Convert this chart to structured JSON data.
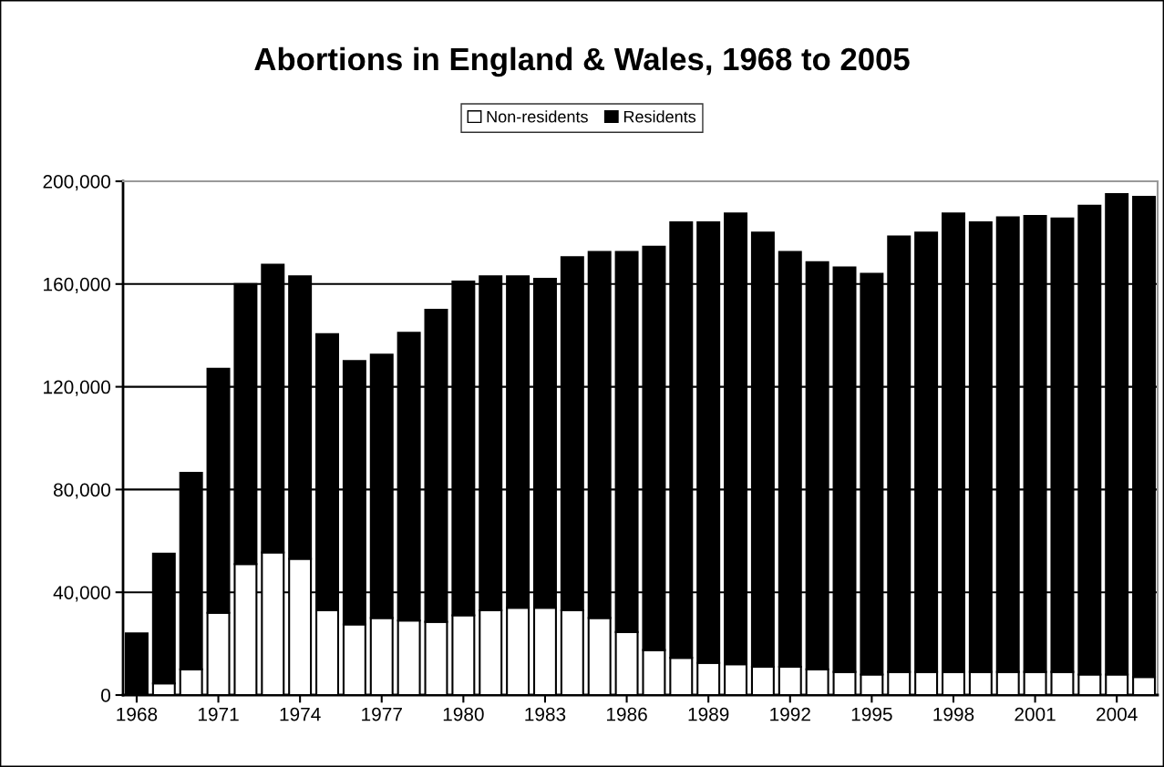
{
  "chart_data": {
    "type": "bar",
    "title": "Abortions in England & Wales, 1968 to 2005",
    "stacked": true,
    "categories": [
      "1968",
      null,
      null,
      "1971",
      null,
      null,
      "1974",
      null,
      null,
      "1977",
      null,
      null,
      "1980",
      null,
      null,
      "1983",
      null,
      null,
      "1986",
      null,
      null,
      "1989",
      null,
      null,
      "1992",
      null,
      null,
      "1995",
      null,
      null,
      "1998",
      null,
      null,
      "2001",
      null,
      null,
      "2004",
      null
    ],
    "series": [
      {
        "name": "Non-residents",
        "color": "#ffffff",
        "values": [
          0,
          4500,
          10000,
          32000,
          51000,
          55500,
          53000,
          33000,
          27500,
          30000,
          29000,
          28500,
          31000,
          33000,
          34000,
          34000,
          33000,
          30000,
          24500,
          17500,
          14500,
          12500,
          12000,
          11000,
          11000,
          10000,
          9000,
          8000,
          9000,
          9000,
          9000,
          9000,
          9000,
          9000,
          9000,
          8000,
          8000,
          7000
        ]
      },
      {
        "name": "Residents",
        "color": "#000000",
        "values": [
          24000,
          50500,
          76500,
          95000,
          109000,
          112000,
          110000,
          107500,
          102500,
          102500,
          112000,
          121500,
          130000,
          130000,
          129000,
          128000,
          137500,
          142500,
          148000,
          157000,
          169500,
          171500,
          175500,
          169000,
          161500,
          158500,
          157500,
          156000,
          169500,
          171000,
          178500,
          175000,
          177000,
          177500,
          176500,
          182500,
          187000,
          187000
        ]
      }
    ],
    "ylim": [
      0,
      200000
    ],
    "yticks": [
      0,
      {
        "value": 40000,
        "label": "40,000"
      },
      {
        "value": 80000,
        "label": "80,000"
      },
      {
        "value": 120000,
        "label": "120,000"
      },
      {
        "value": 160000,
        "label": "160,000"
      },
      {
        "value": 200000,
        "label": "200,000"
      }
    ],
    "grid": "y",
    "legend": "top"
  }
}
